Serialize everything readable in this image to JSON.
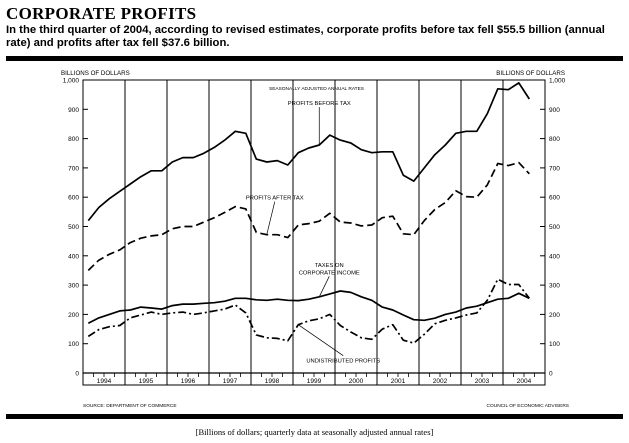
{
  "header": {
    "title": "CORPORATE PROFITS",
    "subtitle": "In the third quarter of 2004, according to revised estimates, corporate profits before tax fell $55.5 billion (annual rate) and profits after tax fell $37.6 billion."
  },
  "footnote": "[Billions of dollars; quarterly data at seasonally adjusted annual rates]",
  "source_left": "SOURCE: DEPARTMENT OF COMMERCE",
  "source_right": "COUNCIL OF ECONOMIC ADVISERS",
  "chart_data": {
    "type": "line",
    "title": "CORPORATE PROFITS",
    "subtitle_in_plot": "SEASONALLY ADJUSTED ANNUAL RATES",
    "ylabel_left": "BILLIONS OF DOLLARS",
    "ylabel_right": "BILLIONS OF DOLLARS",
    "ylim": [
      0,
      1000
    ],
    "yticks": [
      0,
      100,
      200,
      300,
      400,
      500,
      600,
      700,
      800,
      900,
      1000
    ],
    "ytick_labels": [
      "0",
      "100",
      "200",
      "300",
      "400",
      "500",
      "600",
      "700",
      "800",
      "900",
      "1,000"
    ],
    "year_labels": [
      "1994",
      "1995",
      "1996",
      "1997",
      "1998",
      "1999",
      "2000",
      "2001",
      "2002",
      "2003",
      "2004"
    ],
    "quarters_per_year": 4,
    "series": [
      {
        "name": "PROFITS BEFORE TAX",
        "style": "solid",
        "values": [
          520,
          565,
          595,
          620,
          645,
          670,
          690,
          690,
          720,
          735,
          735,
          750,
          770,
          795,
          825,
          818,
          730,
          720,
          725,
          710,
          752,
          768,
          778,
          812,
          795,
          785,
          762,
          752,
          755,
          755,
          675,
          655,
          700,
          745,
          778,
          818,
          825,
          825,
          885,
          970,
          967,
          990,
          935
        ]
      },
      {
        "name": "PROFITS AFTER TAX",
        "style": "dashed",
        "values": [
          350,
          385,
          405,
          420,
          445,
          460,
          468,
          472,
          492,
          500,
          500,
          515,
          530,
          548,
          568,
          560,
          480,
          472,
          472,
          462,
          505,
          510,
          518,
          545,
          515,
          512,
          502,
          505,
          530,
          535,
          475,
          472,
          520,
          558,
          582,
          622,
          602,
          600,
          642,
          715,
          708,
          718,
          680
        ]
      },
      {
        "name": "TAXES ON CORPORATE INCOME",
        "style": "solid",
        "values": [
          170,
          188,
          200,
          212,
          215,
          225,
          222,
          218,
          230,
          235,
          235,
          238,
          240,
          245,
          255,
          255,
          250,
          248,
          252,
          248,
          247,
          252,
          260,
          270,
          280,
          275,
          260,
          248,
          225,
          215,
          198,
          182,
          180,
          187,
          200,
          208,
          222,
          228,
          240,
          252,
          255,
          272,
          255
        ]
      },
      {
        "name": "UNDISTRIBUTED PROFITS",
        "style": "dash-dot",
        "values": [
          125,
          148,
          158,
          162,
          188,
          198,
          208,
          200,
          205,
          208,
          200,
          205,
          212,
          218,
          232,
          205,
          130,
          120,
          118,
          110,
          165,
          178,
          185,
          200,
          162,
          140,
          120,
          115,
          150,
          165,
          112,
          102,
          132,
          168,
          180,
          188,
          198,
          205,
          248,
          320,
          302,
          302,
          255
        ]
      }
    ]
  }
}
